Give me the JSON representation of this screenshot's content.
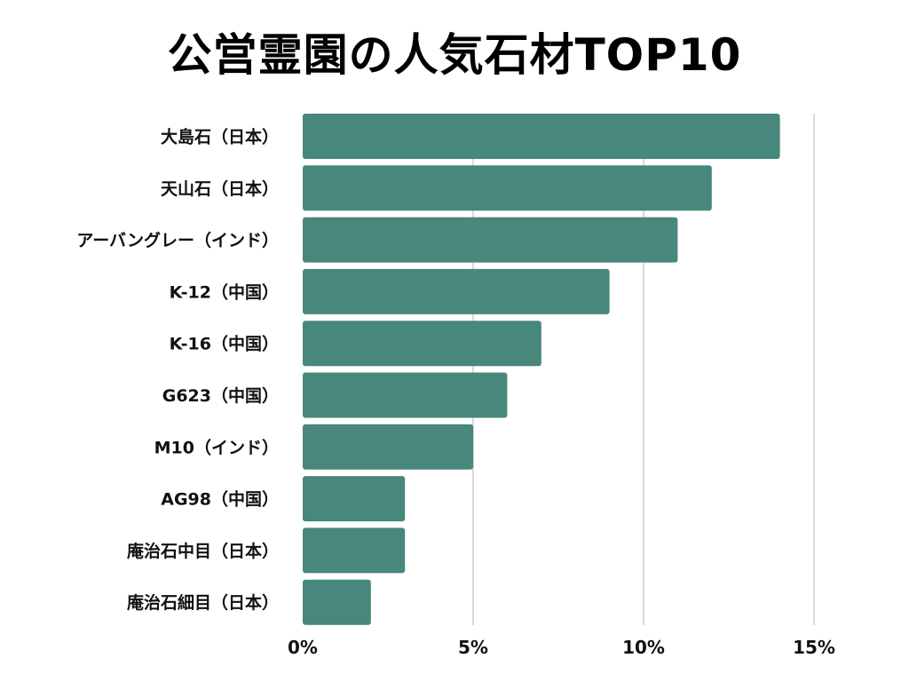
{
  "chart_data": {
    "type": "bar",
    "orientation": "horizontal",
    "title": "公営霊園の人気石材TOP10",
    "categories": [
      "大島石（日本）",
      "天山石（日本）",
      "アーバングレー（インド）",
      "K-12（中国）",
      "K-16（中国）",
      "G623（中国）",
      "M10（インド）",
      "AG98（中国）",
      "庵治石中目（日本）",
      "庵治石細目（日本）"
    ],
    "values": [
      14,
      12,
      11,
      9,
      7,
      6,
      5,
      3,
      3,
      2
    ],
    "xlim": [
      0,
      15
    ],
    "xticks": [
      0,
      5,
      10,
      15
    ],
    "xtick_labels": [
      "0%",
      "5%",
      "10%",
      "15%"
    ],
    "xlabel": "",
    "ylabel": "",
    "grid": true,
    "bar_color": "#47877c",
    "grid_color": "#d9d9d9"
  }
}
